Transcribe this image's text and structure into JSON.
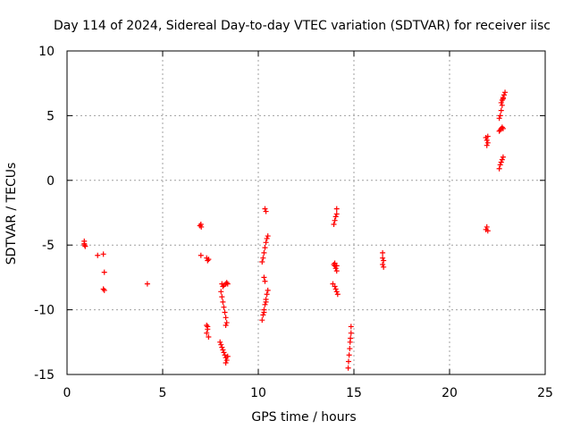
{
  "chart_data": {
    "type": "scatter",
    "title": "Day 114 of 2024, Sidereal Day-to-day VTEC variation (SDTVAR) for receiver iisc",
    "xlabel": "GPS time / hours",
    "ylabel": "SDTVAR / TECUs",
    "xlim": [
      0,
      25
    ],
    "ylim": [
      -15,
      10
    ],
    "xticks": [
      0,
      5,
      10,
      15,
      20,
      25
    ],
    "yticks": [
      -15,
      -10,
      -5,
      0,
      5,
      10
    ],
    "grid": true,
    "marker": "+",
    "color": "#ff0000",
    "points": [
      [
        0.9,
        -4.7
      ],
      [
        0.9,
        -4.9
      ],
      [
        0.95,
        -5.1
      ],
      [
        0.92,
        -5.0
      ],
      [
        1.6,
        -5.8
      ],
      [
        1.9,
        -5.7
      ],
      [
        1.95,
        -7.1
      ],
      [
        1.9,
        -8.4
      ],
      [
        1.95,
        -8.5
      ],
      [
        4.2,
        -8.0
      ],
      [
        6.95,
        -3.5
      ],
      [
        7.0,
        -3.4
      ],
      [
        7.02,
        -3.6
      ],
      [
        7.0,
        -5.8
      ],
      [
        7.3,
        -6.0
      ],
      [
        7.35,
        -6.2
      ],
      [
        7.4,
        -6.1
      ],
      [
        7.3,
        -11.2
      ],
      [
        7.35,
        -11.5
      ],
      [
        7.3,
        -11.8
      ],
      [
        7.4,
        -12.1
      ],
      [
        7.35,
        -11.3
      ],
      [
        8.0,
        -12.5
      ],
      [
        8.05,
        -12.7
      ],
      [
        8.1,
        -12.9
      ],
      [
        8.15,
        -13.1
      ],
      [
        8.2,
        -13.3
      ],
      [
        8.25,
        -13.5
      ],
      [
        8.3,
        -13.7
      ],
      [
        8.35,
        -13.9
      ],
      [
        8.3,
        -14.1
      ],
      [
        8.4,
        -13.6
      ],
      [
        8.1,
        -8.0
      ],
      [
        8.15,
        -8.2
      ],
      [
        8.2,
        -8.1
      ],
      [
        8.3,
        -8.0
      ],
      [
        8.35,
        -7.9
      ],
      [
        8.4,
        -8.0
      ],
      [
        8.05,
        -8.6
      ],
      [
        8.1,
        -9.0
      ],
      [
        8.15,
        -9.4
      ],
      [
        8.2,
        -9.8
      ],
      [
        8.25,
        -10.2
      ],
      [
        8.3,
        -10.6
      ],
      [
        8.35,
        -11.0
      ],
      [
        8.3,
        -11.2
      ],
      [
        10.2,
        -10.8
      ],
      [
        10.25,
        -10.4
      ],
      [
        10.3,
        -10.0
      ],
      [
        10.35,
        -9.6
      ],
      [
        10.4,
        -9.2
      ],
      [
        10.45,
        -8.8
      ],
      [
        10.5,
        -8.5
      ],
      [
        10.3,
        -10.2
      ],
      [
        10.4,
        -9.4
      ],
      [
        10.3,
        -7.5
      ],
      [
        10.35,
        -7.8
      ],
      [
        10.2,
        -6.3
      ],
      [
        10.25,
        -6.0
      ],
      [
        10.3,
        -5.6
      ],
      [
        10.35,
        -5.2
      ],
      [
        10.4,
        -4.8
      ],
      [
        10.45,
        -4.5
      ],
      [
        10.5,
        -4.3
      ],
      [
        10.35,
        -2.2
      ],
      [
        10.4,
        -2.4
      ],
      [
        13.9,
        -8.0
      ],
      [
        14.0,
        -8.2
      ],
      [
        14.05,
        -8.4
      ],
      [
        14.1,
        -8.6
      ],
      [
        14.15,
        -8.8
      ],
      [
        13.95,
        -6.5
      ],
      [
        14.0,
        -6.6
      ],
      [
        14.05,
        -6.8
      ],
      [
        14.1,
        -7.0
      ],
      [
        14.0,
        -6.4
      ],
      [
        14.1,
        -6.6
      ],
      [
        13.95,
        -3.4
      ],
      [
        14.0,
        -3.1
      ],
      [
        14.05,
        -2.8
      ],
      [
        14.1,
        -2.6
      ],
      [
        14.1,
        -2.2
      ],
      [
        14.7,
        -14.5
      ],
      [
        14.72,
        -14.0
      ],
      [
        14.75,
        -13.5
      ],
      [
        14.78,
        -13.0
      ],
      [
        14.8,
        -12.5
      ],
      [
        14.82,
        -12.2
      ],
      [
        14.85,
        -11.8
      ],
      [
        14.85,
        -11.3
      ],
      [
        16.5,
        -5.6
      ],
      [
        16.5,
        -6.0
      ],
      [
        16.55,
        -6.2
      ],
      [
        16.5,
        -6.5
      ],
      [
        16.55,
        -6.7
      ],
      [
        21.9,
        -3.8
      ],
      [
        21.95,
        -3.6
      ],
      [
        22.0,
        -3.9
      ],
      [
        21.9,
        3.3
      ],
      [
        21.95,
        3.1
      ],
      [
        22.0,
        2.9
      ],
      [
        21.95,
        2.7
      ],
      [
        22.0,
        3.4
      ],
      [
        22.6,
        0.9
      ],
      [
        22.65,
        1.2
      ],
      [
        22.7,
        1.4
      ],
      [
        22.75,
        1.6
      ],
      [
        22.8,
        1.8
      ],
      [
        22.6,
        3.8
      ],
      [
        22.65,
        3.9
      ],
      [
        22.7,
        4.0
      ],
      [
        22.75,
        4.1
      ],
      [
        22.8,
        4.0
      ],
      [
        22.6,
        4.8
      ],
      [
        22.65,
        5.0
      ],
      [
        22.7,
        5.4
      ],
      [
        22.75,
        5.8
      ],
      [
        22.7,
        6.0
      ],
      [
        22.75,
        6.2
      ],
      [
        22.8,
        6.4
      ],
      [
        22.85,
        6.6
      ],
      [
        22.9,
        6.8
      ],
      [
        22.8,
        6.3
      ]
    ]
  }
}
